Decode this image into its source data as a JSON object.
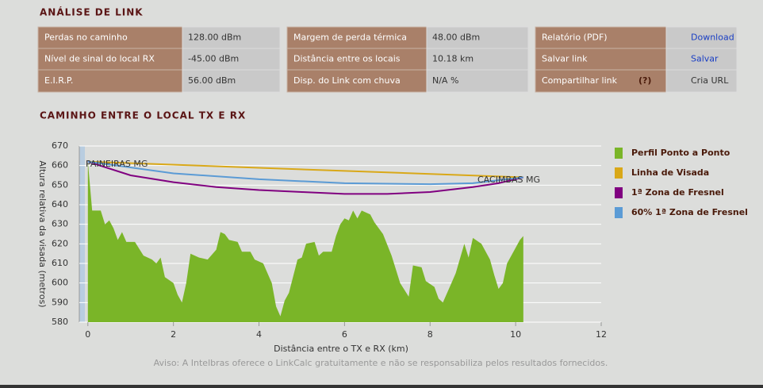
{
  "section_title": "ANÁLISE DE LINK",
  "panels": [
    {
      "rows": [
        {
          "label": "Perdas no caminho",
          "value": "128.00 dBm"
        },
        {
          "label": "Nível de sinal do local RX",
          "value": "-45.00 dBm"
        },
        {
          "label": "E.I.R.P.",
          "value": "56.00 dBm"
        }
      ]
    },
    {
      "rows": [
        {
          "label": "Margem de perda térmica",
          "value": "48.00 dBm"
        },
        {
          "label": "Distância entre os locais",
          "value": "10.18 km"
        },
        {
          "label": "Disp. do Link com chuva",
          "value": "N/A %"
        }
      ]
    },
    {
      "rows": [
        {
          "label": "Relatório (PDF)",
          "value": "Download"
        },
        {
          "label": "Salvar link",
          "value": "Salvar"
        },
        {
          "label": "Compartilhar link",
          "hint": "(?)",
          "value": "Cria URL"
        }
      ]
    }
  ],
  "chart_title": "CAMINHO ENTRE O LOCAL TX E RX",
  "chart_data": {
    "type": "line",
    "xlabel": "Distância entre o TX e RX (km)",
    "ylabel": "Altura relativa da visada (metros)",
    "xlim": [
      -0.2,
      12
    ],
    "xticks": [
      0,
      2,
      4,
      6,
      8,
      10,
      12
    ],
    "ylim": [
      580,
      670
    ],
    "yticks": [
      580,
      590,
      600,
      610,
      620,
      630,
      640,
      650,
      660,
      670
    ],
    "grid": true,
    "annotations": [
      "PAINEIRAS MG",
      "CACIMBAS MG"
    ],
    "series": [
      {
        "name": "Perfil Ponto a Ponto",
        "color": "#7ab528",
        "type": "area",
        "x": [
          0,
          0.1,
          0.3,
          0.4,
          0.5,
          0.6,
          0.7,
          0.8,
          0.9,
          1.1,
          1.3,
          1.5,
          1.6,
          1.7,
          1.8,
          2.0,
          2.1,
          2.2,
          2.3,
          2.4,
          2.6,
          2.8,
          3.0,
          3.1,
          3.2,
          3.3,
          3.5,
          3.6,
          3.8,
          3.9,
          4.1,
          4.3,
          4.4,
          4.5,
          4.6,
          4.7,
          4.9,
          5.0,
          5.1,
          5.3,
          5.4,
          5.5,
          5.7,
          5.8,
          5.9,
          6.0,
          6.1,
          6.2,
          6.3,
          6.4,
          6.6,
          6.7,
          6.9,
          7.1,
          7.3,
          7.5,
          7.6,
          7.8,
          7.9,
          8.1,
          8.2,
          8.3,
          8.5,
          8.6,
          8.8,
          8.9,
          9.0,
          9.2,
          9.4,
          9.5,
          9.6,
          9.7,
          9.8,
          10.0,
          10.1,
          10.18
        ],
        "values": [
          662,
          637,
          637,
          630,
          632,
          628,
          622,
          626,
          621,
          621,
          614,
          612,
          610,
          613,
          603,
          600,
          594,
          590,
          600,
          615,
          613,
          612,
          617,
          626,
          625,
          622,
          621,
          616,
          616,
          612,
          610,
          600,
          588,
          583,
          591,
          595,
          612,
          613,
          620,
          621,
          614,
          616,
          616,
          624,
          630,
          633,
          632,
          637,
          633,
          637,
          635,
          631,
          625,
          614,
          600,
          593,
          609,
          608,
          601,
          598,
          592,
          590,
          600,
          605,
          620,
          613,
          623,
          620,
          612,
          604,
          597,
          600,
          610,
          618,
          622,
          624
        ]
      },
      {
        "name": "Linha de Visada",
        "color": "#d9a818",
        "x": [
          0,
          10.18
        ],
        "values": [
          662,
          654
        ]
      },
      {
        "name": "1ª Zona de Fresnel",
        "color": "#800080",
        "x": [
          0,
          1,
          2,
          3,
          4,
          5,
          6,
          7,
          8,
          9,
          9.6,
          10.18
        ],
        "values": [
          662,
          655,
          651.5,
          649,
          647.5,
          646.5,
          645.5,
          645.5,
          646.5,
          649,
          651,
          654
        ]
      },
      {
        "name": "60% 1ª Zona de Fresnel",
        "color": "#5b9bd5",
        "x": [
          0,
          2,
          4,
          6,
          8,
          9,
          10.18
        ],
        "values": [
          662,
          656,
          653,
          651,
          650.5,
          651,
          654
        ]
      }
    ]
  },
  "disclaimer": "Aviso: A Intelbras oferece o LinkCalc gratuitamente e não se responsabiliza pelos resultados fornecidos."
}
